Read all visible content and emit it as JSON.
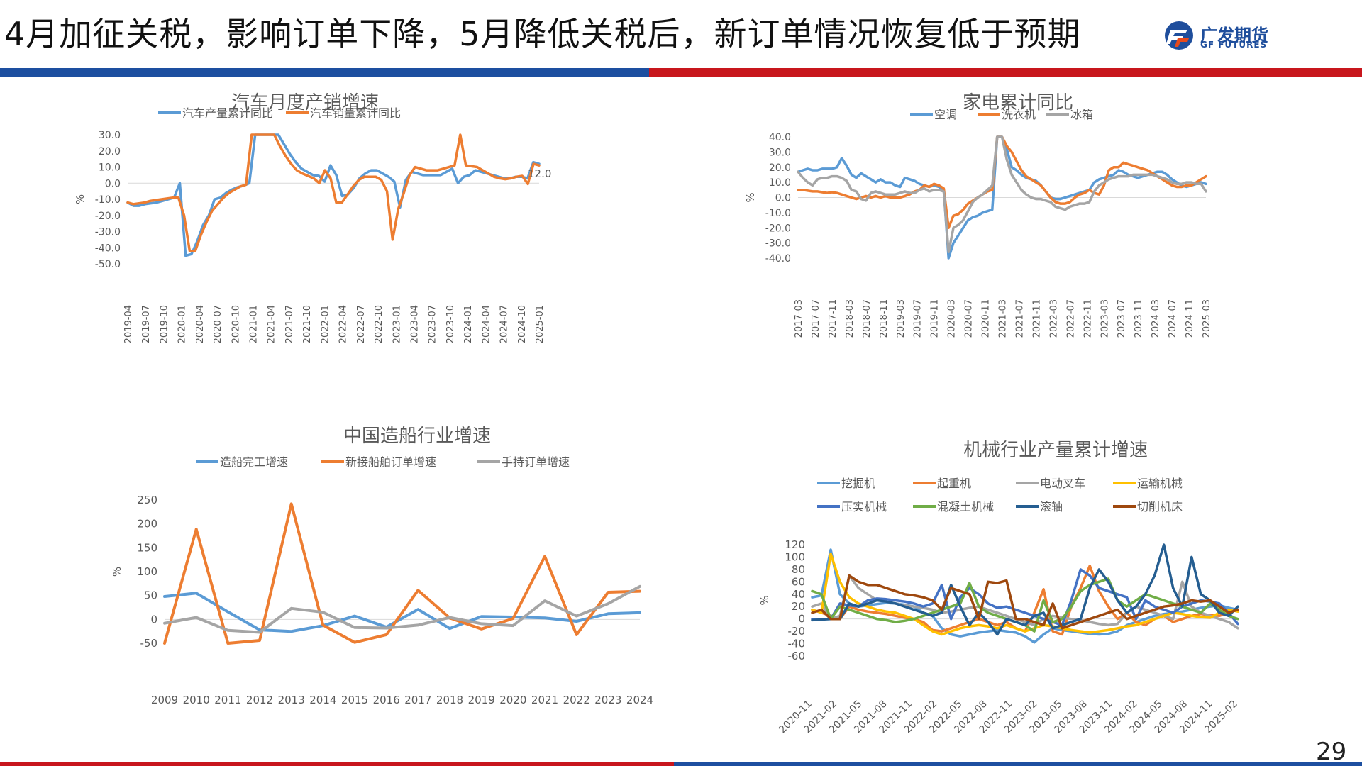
{
  "page": {
    "title": "4月加征关税，影响订单下降，5月降低关税后，新订单情况恢复低于预期",
    "logo_cn": "广发期货",
    "logo_en": "GF FUTURES",
    "page_number": "29",
    "colors": {
      "blue_bar": "#1d4fa0",
      "red_bar": "#c8161d"
    }
  },
  "chart_data": [
    {
      "id": "auto",
      "type": "line",
      "title": "汽车月度产销增速",
      "ylabel": "%",
      "ylim": [
        -50,
        30
      ],
      "yticks": [
        "30.0",
        "20.0",
        "10.0",
        "0.0",
        "-10.0",
        "-20.0",
        "-30.0",
        "-40.0",
        "-50.0"
      ],
      "x_tick_labels": [
        "2019-04",
        "2019-07",
        "2019-10",
        "2020-01",
        "2020-04",
        "2020-07",
        "2020-10",
        "2021-01",
        "2021-04",
        "2021-07",
        "2021-10",
        "2022-01",
        "2022-04",
        "2022-07",
        "2022-10",
        "2023-01",
        "2023-04",
        "2023-07",
        "2023-10",
        "2024-01",
        "2024-04",
        "2024-07",
        "2024-10",
        "2025-01"
      ],
      "data_label": "12.0",
      "legend": "top",
      "series": [
        {
          "name": "汽车产量累计同比",
          "color": "#5b9bd5",
          "values": [
            -12,
            -14,
            -14,
            -13,
            -12.5,
            -12,
            -11,
            -10,
            -9,
            0,
            -45,
            -44,
            -36,
            -26,
            -20,
            -10,
            -9,
            -6,
            -4,
            -2.5,
            -1.5,
            0,
            30,
            30,
            30,
            30,
            30,
            24,
            18,
            13,
            9,
            7,
            5,
            4.5,
            1,
            11,
            5,
            -8,
            -7,
            -3,
            3,
            6,
            8,
            8,
            6,
            4,
            1,
            -15,
            2,
            7,
            6,
            5,
            5,
            5,
            5,
            7,
            9,
            0,
            4,
            5,
            8,
            7,
            6,
            5,
            4,
            3,
            3,
            4,
            4,
            3,
            13,
            12
          ]
        },
        {
          "name": "汽车销量累计同比",
          "color": "#ed7d31",
          "values": [
            -12,
            -13,
            -12.5,
            -12,
            -11,
            -10.5,
            -10,
            -9.5,
            -9,
            -9,
            -20,
            -42,
            -42,
            -32,
            -24,
            -17,
            -13,
            -9,
            -6,
            -4,
            -2,
            -1,
            30,
            30,
            30,
            30,
            30,
            23,
            17,
            12,
            8,
            6,
            4.5,
            3,
            0,
            8,
            3,
            -12,
            -12,
            -7,
            -2,
            2,
            4,
            4,
            4,
            2,
            -5,
            -35,
            -16,
            -6,
            5,
            10,
            9,
            8,
            8,
            8,
            9,
            10,
            11,
            30,
            11,
            10.5,
            10,
            8,
            6,
            4,
            3,
            2.5,
            3,
            4,
            4.5,
            -0.5,
            12,
            11
          ]
        }
      ]
    },
    {
      "id": "appliance",
      "type": "line",
      "title": "家电累计同比",
      "ylabel": "%",
      "ylim": [
        -40,
        40
      ],
      "yticks": [
        "40.0",
        "30.0",
        "20.0",
        "10.0",
        "0.0",
        "-10.0",
        "-20.0",
        "-30.0",
        "-40.0"
      ],
      "x_tick_labels": [
        "2017-03",
        "2017-07",
        "2017-11",
        "2018-03",
        "2018-07",
        "2018-11",
        "2019-03",
        "2019-07",
        "2019-11",
        "2020-03",
        "2020-07",
        "2020-11",
        "2021-03",
        "2021-07",
        "2021-11",
        "2022-03",
        "2022-07",
        "2022-11",
        "2023-03",
        "2023-07",
        "2023-11",
        "2024-03",
        "2024-07",
        "2024-11",
        "2025-03"
      ],
      "legend": "top",
      "series": [
        {
          "name": "空调",
          "color": "#5b9bd5",
          "values": [
            17,
            18,
            19,
            18,
            18,
            19,
            19,
            19,
            20,
            26,
            21,
            15,
            13,
            16,
            14,
            12,
            10,
            12,
            10,
            10,
            8,
            7,
            13,
            12,
            11,
            9,
            8,
            7,
            8,
            7,
            5,
            -40,
            -30,
            -25,
            -20,
            -15,
            -13,
            -12,
            -10,
            -9,
            -8,
            40,
            40,
            32,
            20,
            18,
            15,
            13,
            12,
            11,
            8,
            4,
            0,
            -1,
            -1,
            0,
            1,
            2,
            3,
            4,
            5,
            10,
            12,
            13,
            14,
            15,
            18,
            17,
            15,
            14,
            13,
            14,
            15,
            16,
            17,
            17,
            15,
            12,
            10,
            8,
            7,
            8,
            9,
            10,
            9
          ]
        },
        {
          "name": "洗衣机",
          "color": "#ed7d31",
          "values": [
            5,
            5,
            4.5,
            4,
            4,
            3.5,
            3,
            3.5,
            3,
            2,
            1,
            0,
            -1,
            0,
            1,
            0,
            1,
            0,
            1,
            0,
            0,
            0,
            1,
            2,
            4,
            5,
            8,
            7,
            9,
            8,
            6,
            -20,
            -12,
            -11,
            -8,
            -4,
            -2,
            0,
            2,
            4,
            5,
            40,
            40,
            34,
            30,
            24,
            18,
            14,
            12,
            10,
            8,
            4,
            0,
            -3,
            -4,
            -4,
            -3,
            0,
            2,
            3,
            5,
            3,
            2,
            8,
            18,
            20,
            20,
            23,
            22,
            21,
            20,
            19,
            18,
            16,
            14,
            12,
            10,
            8,
            7,
            7,
            8,
            8,
            10,
            12,
            14
          ]
        },
        {
          "name": "冰箱",
          "color": "#a5a5a5",
          "values": [
            17,
            13,
            10,
            8,
            12,
            13,
            13,
            14,
            14,
            13,
            11,
            5,
            4,
            -1,
            -2,
            3,
            4,
            3,
            2,
            2,
            2,
            3,
            4,
            3,
            3,
            5,
            6,
            4,
            5,
            5,
            4,
            -36,
            -20,
            -18,
            -15,
            -9,
            -3,
            0,
            2,
            5,
            8,
            40,
            40,
            25,
            15,
            10,
            5,
            2,
            0,
            -1,
            -1,
            -2,
            -3,
            -6,
            -7,
            -8,
            -6,
            -5,
            -4,
            -4,
            -3,
            4,
            8,
            10,
            12,
            13,
            14,
            14,
            14,
            15,
            15,
            15,
            15,
            15,
            14,
            13,
            12,
            10,
            9,
            9,
            10,
            10,
            9,
            9,
            4
          ]
        }
      ]
    },
    {
      "id": "shipbuilding",
      "type": "line",
      "title": "中国造船行业增速",
      "ylabel": "%",
      "ylim": [
        -50,
        250
      ],
      "yticks": [
        "250",
        "200",
        "150",
        "100",
        "50",
        "0",
        "-50"
      ],
      "categories": [
        "2009",
        "2010",
        "2011",
        "2012",
        "2013",
        "2014",
        "2015",
        "2016",
        "2017",
        "2018",
        "2019",
        "2020",
        "2021",
        "2022",
        "2023",
        "2024"
      ],
      "legend": "top",
      "series": [
        {
          "name": "造船完工增速",
          "color": "#5b9bd5",
          "values": [
            48,
            55,
            16,
            -22,
            -25,
            -13,
            7,
            -16,
            21,
            -19,
            6,
            5,
            3,
            -4,
            12,
            14
          ]
        },
        {
          "name": "新接船舶订单增速",
          "color": "#ed7d31",
          "values": [
            -50,
            189,
            -51,
            -44,
            242,
            -12,
            -48,
            -32,
            61,
            3,
            -20,
            2,
            132,
            -32,
            57,
            59
          ]
        },
        {
          "name": "手持订单增速",
          "color": "#a5a5a5",
          "values": [
            -8,
            4,
            -23,
            -27,
            23,
            15,
            -17,
            -18,
            -12,
            4,
            -9,
            -13,
            39,
            7,
            33,
            69
          ]
        }
      ]
    },
    {
      "id": "machinery",
      "type": "line",
      "title": "机械行业产量累计增速",
      "ylabel": "%",
      "ylim": [
        -60,
        120
      ],
      "yticks": [
        "120",
        "100",
        "80",
        "60",
        "40",
        "20",
        "0",
        "-20",
        "-40",
        "-60"
      ],
      "x_tick_labels": [
        "2020-11",
        "2021-02",
        "2021-05",
        "2021-08",
        "2021-11",
        "2022-02",
        "2022-05",
        "2022-08",
        "2022-11",
        "2023-02",
        "2023-05",
        "2023-08",
        "2023-11",
        "2024-02",
        "2024-05",
        "2024-08",
        "2024-11",
        "2025-02"
      ],
      "legend": "top",
      "series": [
        {
          "name": "挖掘机",
          "color": "#5b9bd5",
          "values": [
            35,
            38,
            112,
            40,
            25,
            20,
            22,
            24,
            26,
            25,
            23,
            20,
            10,
            5,
            -15,
            -25,
            -28,
            -25,
            -22,
            -20,
            -18,
            -20,
            -22,
            -28,
            -38,
            -25,
            -15,
            -18,
            -20,
            -22,
            -24,
            -25,
            -24,
            -20,
            -10,
            -5,
            0,
            5,
            8,
            10,
            12,
            15,
            18,
            20,
            22,
            18,
            15
          ]
        },
        {
          "name": "起重机",
          "color": "#ed7d31",
          "values": [
            15,
            10,
            5,
            0,
            20,
            15,
            12,
            10,
            8,
            5,
            2,
            0,
            -5,
            -18,
            -20,
            -15,
            -10,
            -5,
            0,
            -5,
            -10,
            -5,
            -15,
            -20,
            10,
            48,
            -20,
            -25,
            20,
            50,
            86,
            45,
            20,
            0,
            10,
            -5,
            -10,
            0,
            5,
            -5,
            0,
            5,
            8,
            6,
            5,
            10,
            15
          ]
        },
        {
          "name": "电动叉车",
          "color": "#a5a5a5",
          "values": [
            20,
            25,
            0,
            5,
            70,
            50,
            40,
            30,
            28,
            25,
            22,
            20,
            18,
            15,
            10,
            12,
            15,
            18,
            20,
            15,
            10,
            5,
            0,
            -5,
            -10,
            0,
            5,
            2,
            0,
            -2,
            -5,
            -8,
            -10,
            -8,
            10,
            20,
            15,
            10,
            5,
            0,
            60,
            20,
            10,
            5,
            0,
            -5,
            -15
          ]
        },
        {
          "name": "运输机械",
          "color": "#ffc000",
          "values": [
            15,
            10,
            105,
            60,
            35,
            25,
            20,
            15,
            12,
            10,
            5,
            0,
            -10,
            -20,
            -25,
            -20,
            -15,
            -12,
            -10,
            -12,
            -15,
            -10,
            -15,
            -20,
            -15,
            -10,
            -12,
            -15,
            -18,
            -20,
            -22,
            -20,
            -18,
            -15,
            -12,
            -10,
            -5,
            0,
            5,
            10,
            8,
            5,
            3,
            2,
            10,
            15,
            12
          ]
        },
        {
          "name": "压实机械",
          "color": "#4472c4",
          "values": [
            0,
            0,
            0,
            25,
            22,
            20,
            30,
            33,
            32,
            30,
            28,
            25,
            20,
            25,
            55,
            0,
            35,
            50,
            40,
            25,
            18,
            20,
            15,
            10,
            5,
            0,
            -5,
            -10,
            30,
            80,
            70,
            50,
            45,
            40,
            35,
            0,
            30,
            20,
            15,
            10,
            20,
            25,
            30,
            28,
            25,
            10,
            -8
          ]
        },
        {
          "name": "混凝土机械",
          "color": "#70ad47",
          "values": [
            45,
            40,
            0,
            20,
            15,
            10,
            5,
            0,
            -2,
            -5,
            -3,
            0,
            5,
            10,
            15,
            20,
            25,
            58,
            20,
            10,
            5,
            0,
            -5,
            -10,
            -20,
            30,
            -5,
            0,
            20,
            45,
            55,
            60,
            65,
            30,
            20,
            30,
            40,
            35,
            30,
            25,
            20,
            15,
            10,
            25,
            15,
            5,
            0
          ]
        },
        {
          "name": "滚轴",
          "color": "#255e91",
          "values": [
            -2,
            -1,
            0,
            0,
            25,
            20,
            25,
            30,
            28,
            25,
            20,
            15,
            10,
            5,
            10,
            55,
            20,
            -10,
            10,
            -5,
            -25,
            0,
            -5,
            -10,
            5,
            10,
            -15,
            -10,
            -5,
            0,
            50,
            80,
            60,
            30,
            10,
            20,
            40,
            70,
            128,
            50,
            20,
            100,
            40,
            30,
            10,
            5,
            20
          ]
        },
        {
          "name": "切削机床",
          "color": "#9e480e",
          "values": [
            10,
            15,
            0,
            0,
            70,
            60,
            55,
            55,
            50,
            45,
            40,
            38,
            35,
            30,
            15,
            50,
            45,
            40,
            0,
            60,
            58,
            62,
            0,
            0,
            -5,
            -10,
            25,
            -15,
            -10,
            -5,
            0,
            5,
            10,
            15,
            0,
            5,
            10,
            15,
            20,
            22,
            25,
            30,
            28,
            30,
            20,
            10,
            15
          ]
        }
      ]
    }
  ]
}
